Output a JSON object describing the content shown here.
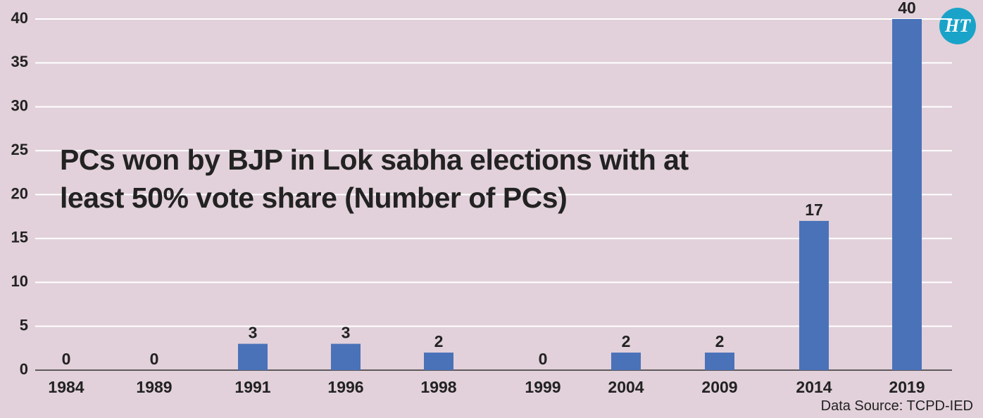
{
  "chart_data": {
    "type": "bar",
    "title": "PCs won by BJP in Lok sabha elections with at least 50% vote share (Number of PCs)",
    "categories": [
      "1984",
      "1989",
      "1991",
      "1996",
      "1998",
      "1999",
      "2004",
      "2009",
      "2014",
      "2019"
    ],
    "values": [
      0,
      0,
      3,
      3,
      2,
      0,
      2,
      2,
      17,
      40
    ],
    "color": "#4a72b8",
    "ylim": [
      0,
      40
    ],
    "yticks": [
      0,
      5,
      10,
      15,
      20,
      25,
      30,
      35,
      40
    ],
    "grid": true,
    "source": "Data Source: TCPD-IED",
    "logo": "HT"
  }
}
